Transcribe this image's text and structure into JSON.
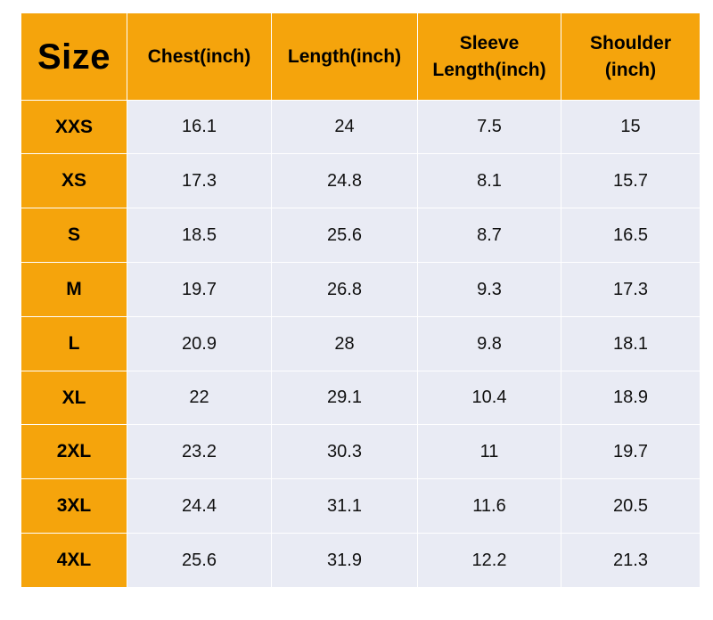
{
  "table": {
    "headers": [
      {
        "lines": [
          "Size"
        ]
      },
      {
        "lines": [
          "Chest(inch)"
        ]
      },
      {
        "lines": [
          "Length(inch)"
        ]
      },
      {
        "lines": [
          "Sleeve",
          "Length(inch)"
        ]
      },
      {
        "lines": [
          "Shoulder",
          "(inch)"
        ]
      }
    ],
    "rows": [
      {
        "size": "XXS",
        "chest": "16.1",
        "length": "24",
        "sleeve": "7.5",
        "shoulder": "15"
      },
      {
        "size": "XS",
        "chest": "17.3",
        "length": "24.8",
        "sleeve": "8.1",
        "shoulder": "15.7"
      },
      {
        "size": "S",
        "chest": "18.5",
        "length": "25.6",
        "sleeve": "8.7",
        "shoulder": "16.5"
      },
      {
        "size": "M",
        "chest": "19.7",
        "length": "26.8",
        "sleeve": "9.3",
        "shoulder": "17.3"
      },
      {
        "size": "L",
        "chest": "20.9",
        "length": "28",
        "sleeve": "9.8",
        "shoulder": "18.1"
      },
      {
        "size": "XL",
        "chest": "22",
        "length": "29.1",
        "sleeve": "10.4",
        "shoulder": "18.9"
      },
      {
        "size": "2XL",
        "chest": "23.2",
        "length": "30.3",
        "sleeve": "11",
        "shoulder": "19.7"
      },
      {
        "size": "3XL",
        "chest": "24.4",
        "length": "31.1",
        "sleeve": "11.6",
        "shoulder": "20.5"
      },
      {
        "size": "4XL",
        "chest": "25.6",
        "length": "31.9",
        "sleeve": "12.2",
        "shoulder": "21.3"
      }
    ]
  },
  "colors": {
    "header_background": "#f5a40c",
    "cell_background": "#e9ebf4",
    "grid_lines": "#ffffff"
  }
}
